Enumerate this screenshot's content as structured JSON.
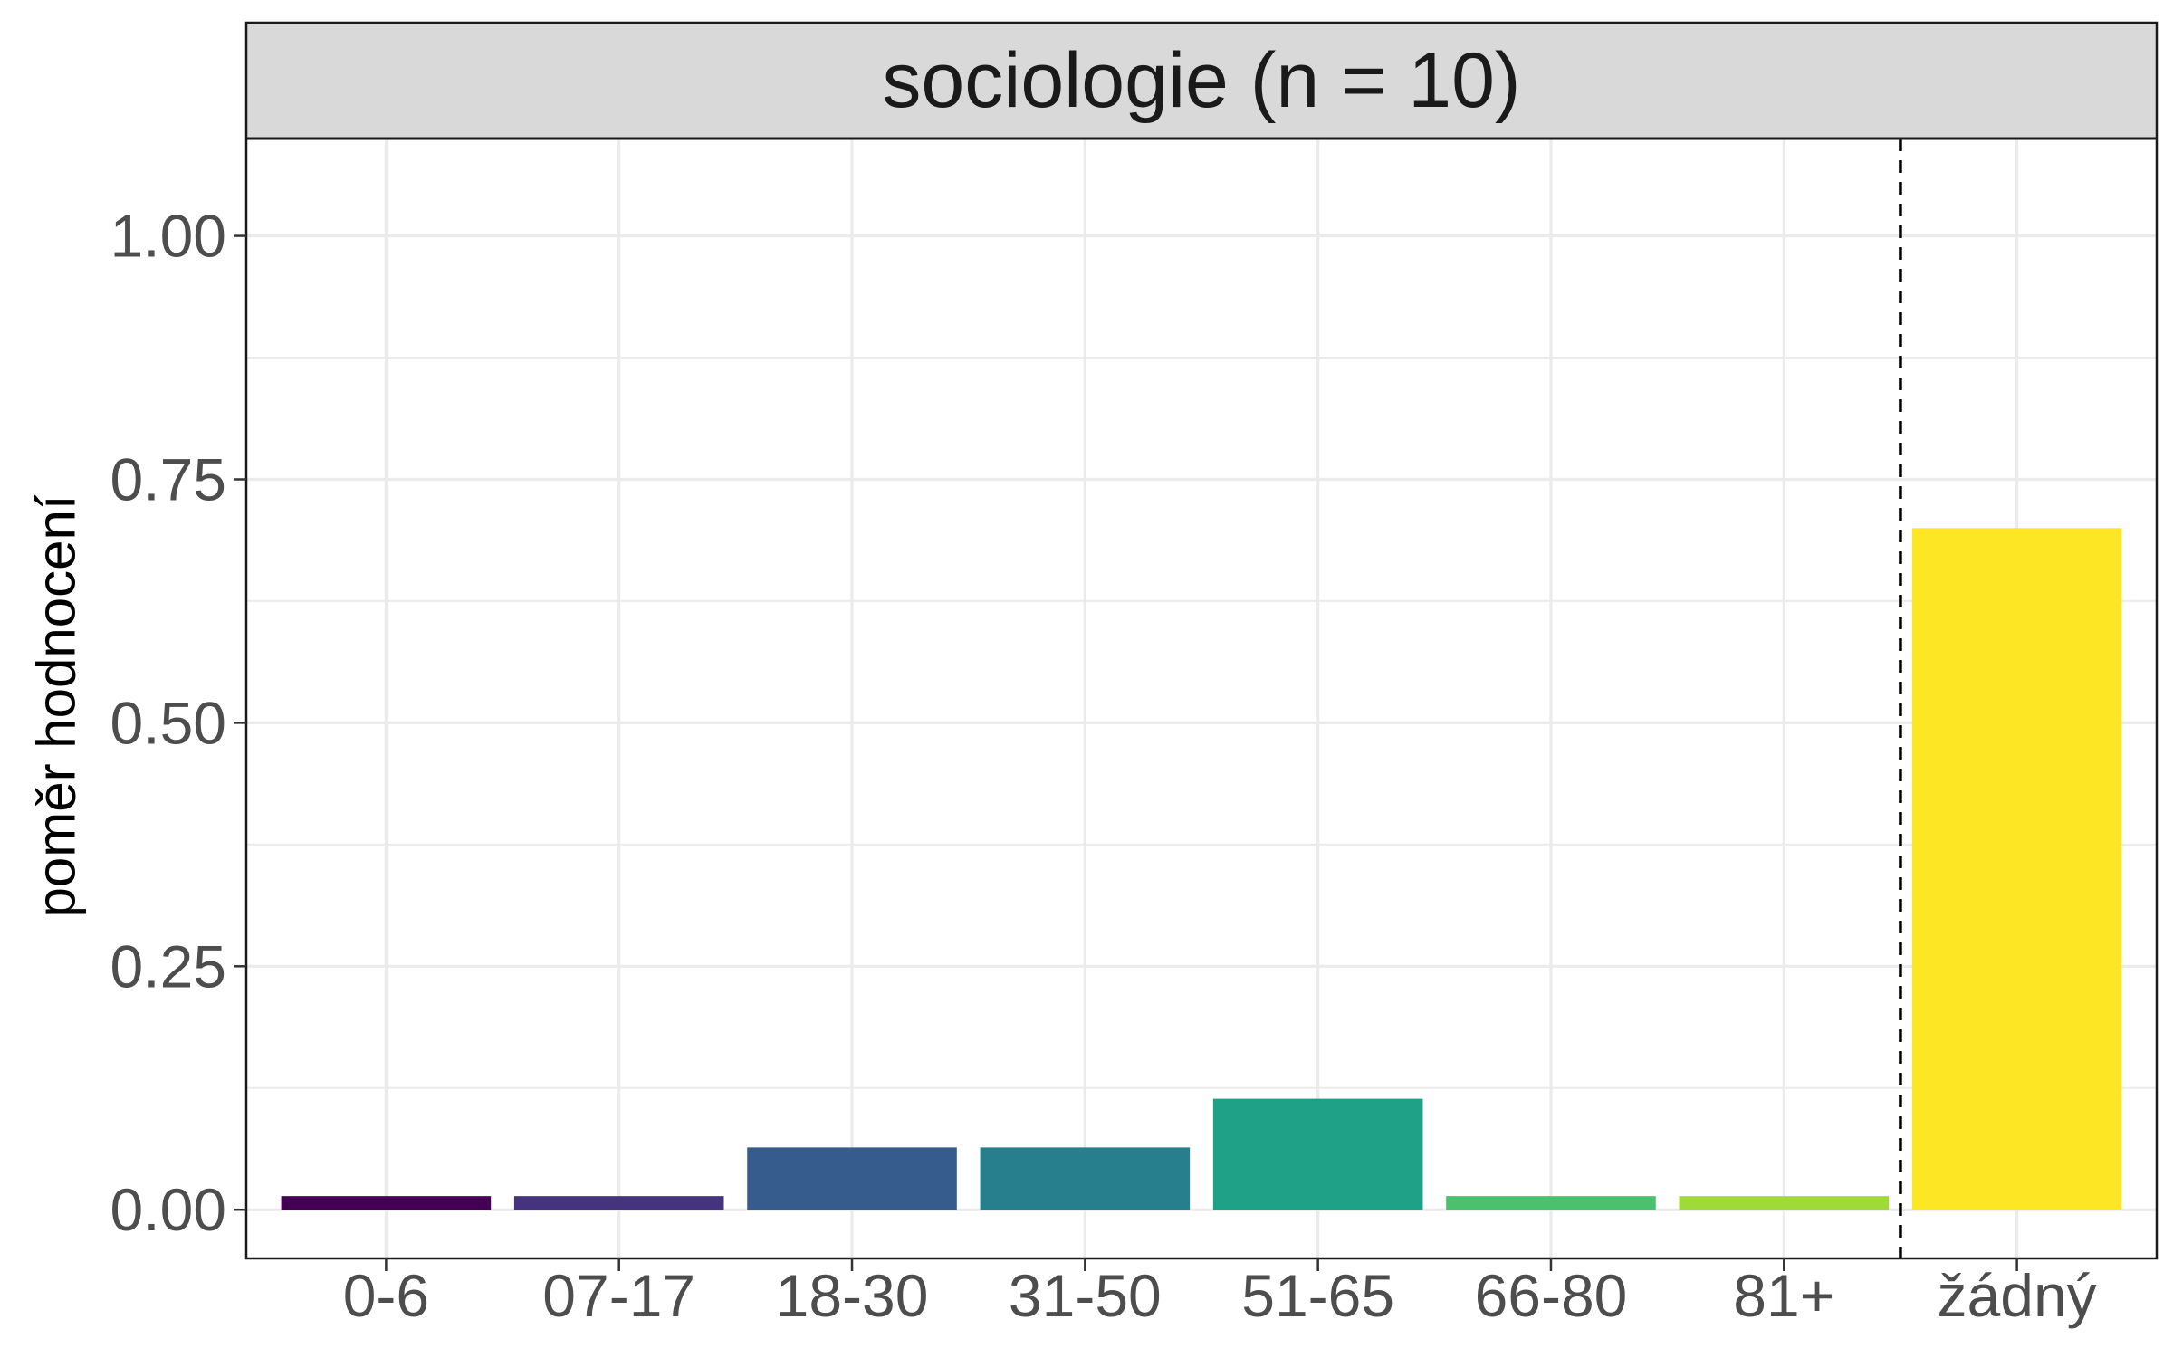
{
  "chart_data": {
    "type": "bar",
    "title": "sociologie (n = 10)",
    "xlabel": "",
    "ylabel": "poměr hodnocení",
    "categories": [
      "0-6",
      "07-17",
      "18-30",
      "31-50",
      "51-65",
      "66-80",
      "81+",
      "žádný"
    ],
    "values": [
      0.014,
      0.014,
      0.064,
      0.064,
      0.114,
      0.014,
      0.014,
      0.7
    ],
    "colors": [
      "#440154",
      "#46337E",
      "#365C8D",
      "#277F8E",
      "#1FA187",
      "#4AC16D",
      "#9FDA3A",
      "#FDE725"
    ],
    "ylim": [
      -0.05,
      1.1
    ],
    "yticks": [
      0.0,
      0.25,
      0.5,
      0.75,
      1.0
    ],
    "ytick_labels": [
      "0.00",
      "0.25",
      "0.50",
      "0.75",
      "1.00"
    ],
    "grid": true,
    "reference_line": {
      "between": [
        "81+",
        "žádný"
      ],
      "style": "dashed",
      "color": "#000000"
    }
  }
}
